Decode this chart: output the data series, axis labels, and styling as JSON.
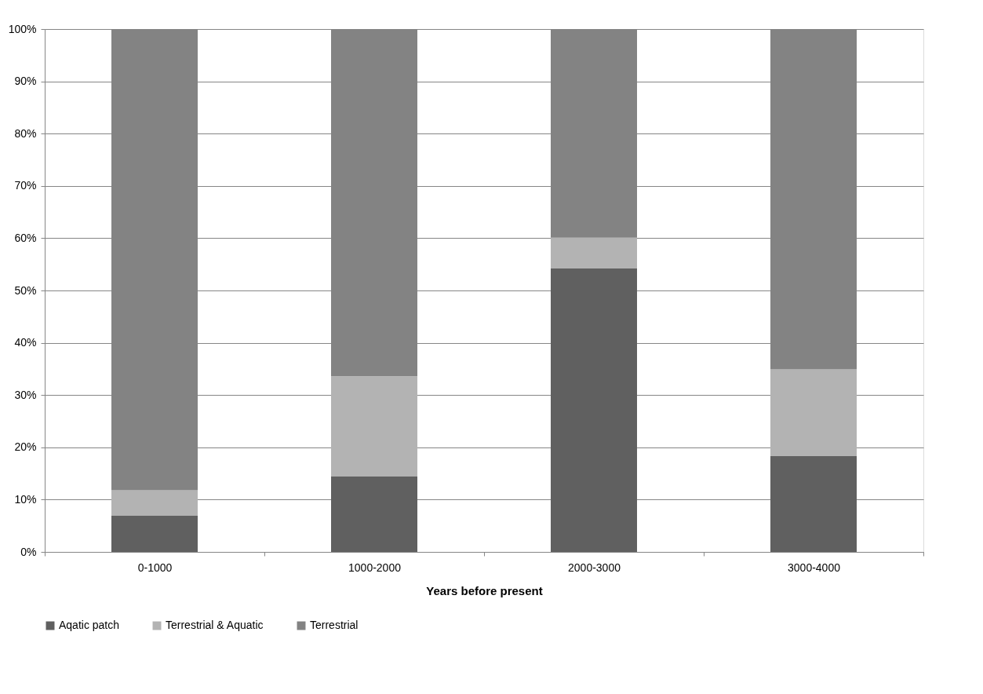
{
  "chart_data": {
    "type": "bar",
    "stacked": true,
    "xlabel": "Years before present",
    "categories": [
      "0-1000",
      "1000-2000",
      "2000-3000",
      "3000-4000"
    ],
    "series": [
      {
        "name": "Aqatic patch",
        "color": "#606060",
        "values": [
          7.0,
          14.5,
          54.2,
          18.3
        ]
      },
      {
        "name": "Terrestrial & Aquatic",
        "color": "#b3b3b3",
        "values": [
          4.8,
          19.1,
          5.9,
          16.6
        ]
      },
      {
        "name": "Terrestrial",
        "color": "#838383",
        "values": [
          88.2,
          66.4,
          39.9,
          65.1
        ]
      }
    ],
    "ylim": [
      0,
      100
    ],
    "yticks": [
      {
        "value": 0,
        "label": "0%"
      },
      {
        "value": 10,
        "label": "10%"
      },
      {
        "value": 20,
        "label": "20%"
      },
      {
        "value": 30,
        "label": "30%"
      },
      {
        "value": 40,
        "label": "40%"
      },
      {
        "value": 50,
        "label": "50%"
      },
      {
        "value": 60,
        "label": "60%"
      },
      {
        "value": 70,
        "label": "70%"
      },
      {
        "value": 80,
        "label": "80%"
      },
      {
        "value": 90,
        "label": "90%"
      },
      {
        "value": 100,
        "label": "100%"
      }
    ],
    "grid": "y",
    "legend": "bottom"
  }
}
